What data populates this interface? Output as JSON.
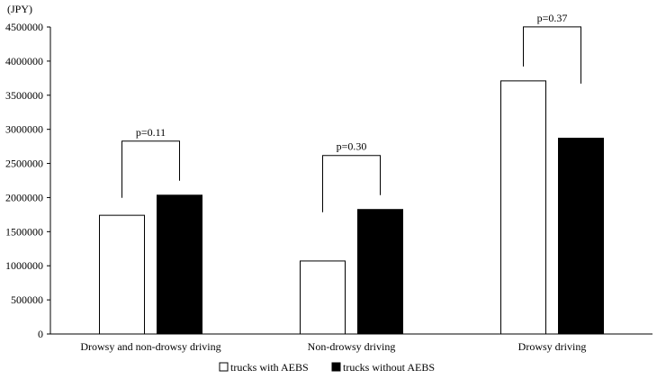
{
  "chart_data": {
    "type": "bar",
    "unit_label": "(JPY)",
    "categories": [
      "Drowsy and non-drowsy driving",
      "Non-drowsy driving",
      "Drowsy driving"
    ],
    "series": [
      {
        "name": "trucks with AEBS",
        "color": "#ffffff",
        "values": [
          1740000,
          1070000,
          3710000
        ]
      },
      {
        "name": "trucks without AEBS",
        "color": "#000000",
        "values": [
          2035000,
          1825000,
          2870000
        ]
      }
    ],
    "annotations": [
      "p=0.11",
      "p=0.30",
      "p=0.37"
    ],
    "ylim": [
      0,
      4500000
    ],
    "yticks": [
      0,
      500000,
      1000000,
      1500000,
      2000000,
      2500000,
      3000000,
      3500000,
      4000000,
      4500000
    ],
    "ytick_labels": [
      "0",
      "500000",
      "1000000",
      "1500000",
      "2000000",
      "2500000",
      "3000000",
      "3500000",
      "4000000",
      "4500000"
    ],
    "grid": false,
    "legend_position": "bottom"
  }
}
